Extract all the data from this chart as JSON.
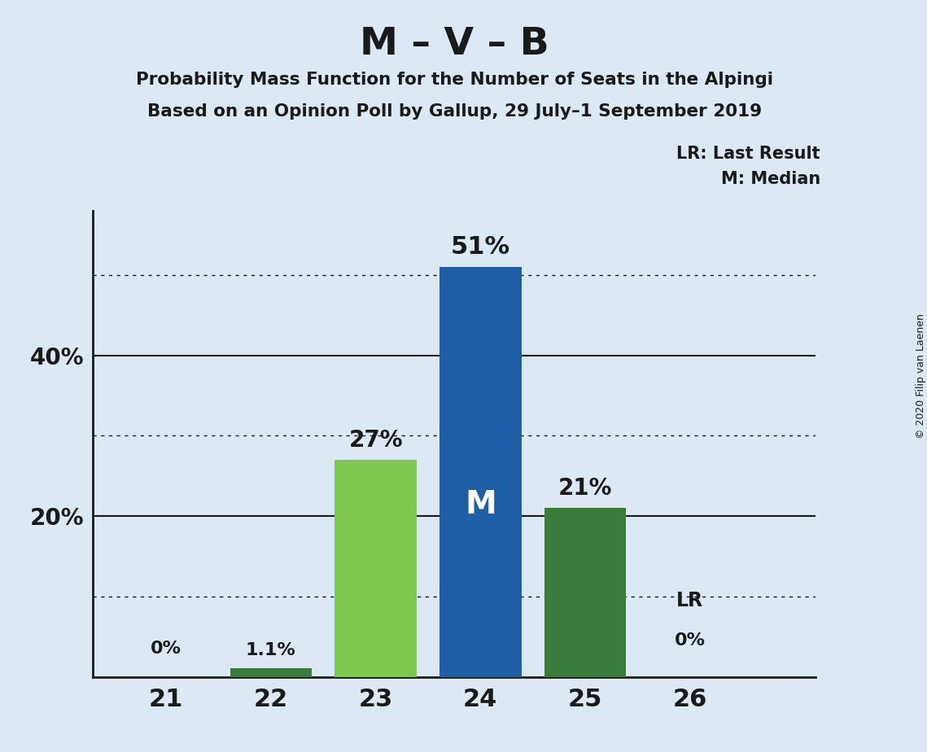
{
  "title": "M – V – B",
  "subtitle1": "Probability Mass Function for the Number of Seats in the Alpingi",
  "subtitle2": "Based on an Opinion Poll by Gallup, 29 July–1 September 2019",
  "copyright": "© 2020 Filip van Laenen",
  "seats": [
    21,
    22,
    23,
    24,
    25,
    26
  ],
  "values": [
    0.0,
    1.1,
    27.0,
    51.0,
    21.0,
    0.0
  ],
  "bar_colors": [
    "#dce9f5",
    "#3a7d3a",
    "#7ec850",
    "#1f5fa6",
    "#3a7d3a",
    "#dce9f5"
  ],
  "median_seat": 24,
  "lr_seat": 26,
  "background_color": "#dce9f5",
  "text_color": "#1a1a1a",
  "bar_label_color_inside": "#ffffff",
  "solid_grid": [
    20,
    40
  ],
  "dotted_grid": [
    10,
    30,
    50
  ],
  "ylim": [
    0,
    58
  ],
  "xlim_left": 20.3,
  "xlim_right": 27.2,
  "bar_width": 0.78
}
